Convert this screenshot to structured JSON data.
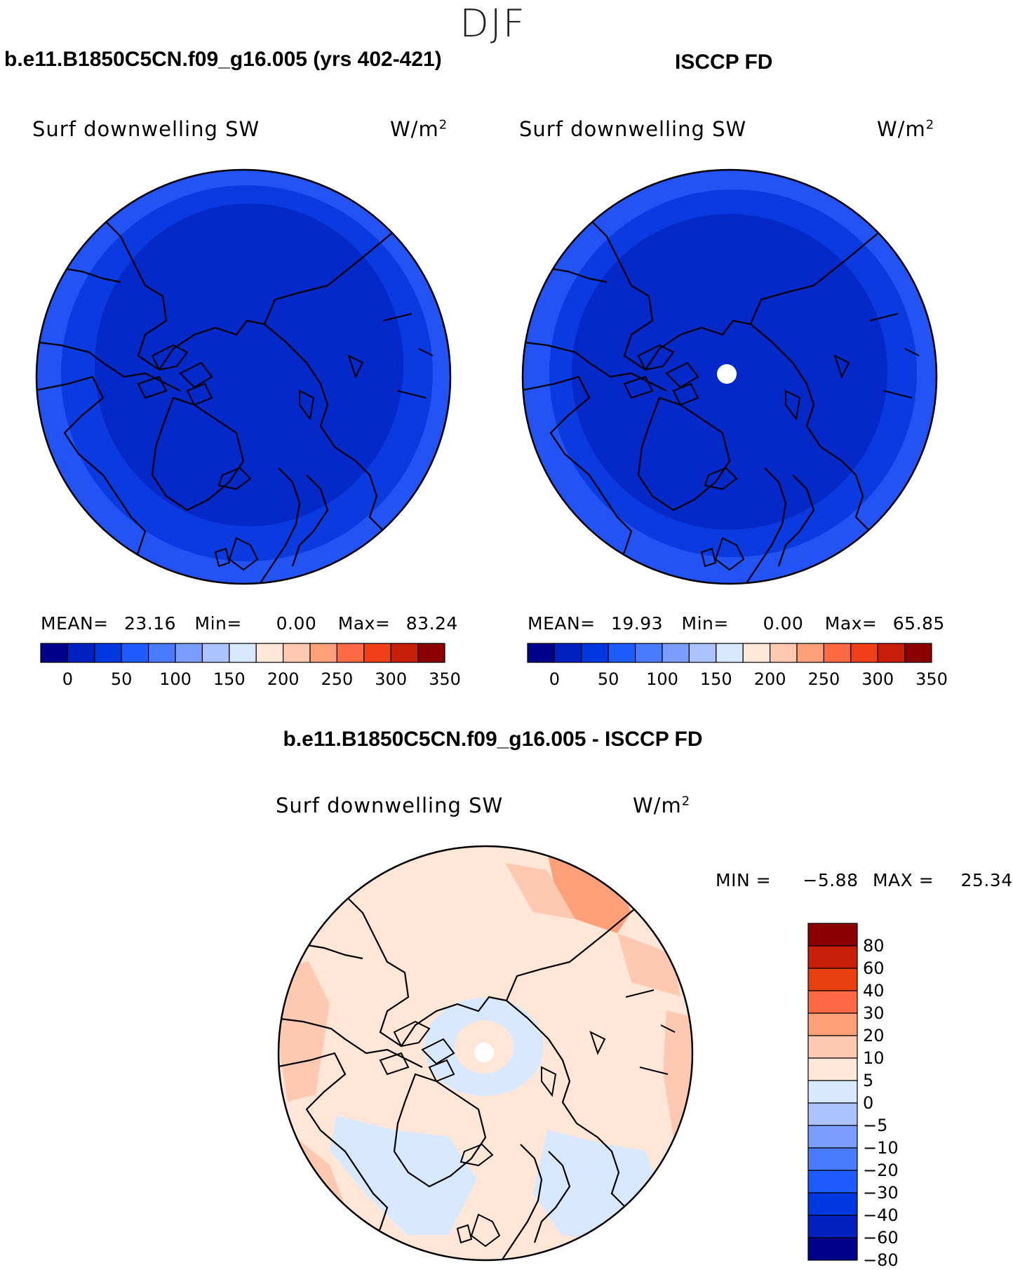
{
  "figure": {
    "title": "DJF",
    "left_title": "b.e11.B1850C5CN.f09_g16.005 (yrs 402-421)",
    "right_title": "ISCCP FD",
    "diff_title": "b.e11.B1850C5CN.f09_g16.005 - ISCCP FD"
  },
  "panels": {
    "model": {
      "variable": "Surf downwelling SW",
      "units": "W/m",
      "units_sup": "2",
      "mean_label": "MEAN=",
      "mean": "23.16",
      "min_label": "Min=",
      "min": "0.00",
      "max_label": "Max=",
      "max": "83.24"
    },
    "obs": {
      "variable": "Surf downwelling SW",
      "units": "W/m",
      "units_sup": "2",
      "mean_label": "MEAN=",
      "mean": "19.93",
      "min_label": "Min=",
      "min": "0.00",
      "max_label": "Max=",
      "max": "65.85"
    },
    "diff": {
      "variable": "Surf downwelling SW",
      "units": "W/m",
      "units_sup": "2",
      "min_label": "MIN =",
      "min": "−5.88",
      "max_label": "MAX =",
      "max": "25.34"
    }
  },
  "chart_data": [
    {
      "type": "heatmap",
      "name": "model",
      "projection": "north polar stereographic",
      "title": "Surf downwelling SW",
      "units": "W/m2",
      "colorbar": {
        "levels": [
          0,
          25,
          50,
          75,
          100,
          125,
          150,
          175,
          200,
          225,
          250,
          275,
          300,
          325,
          350
        ],
        "tick_labels": [
          "0",
          "50",
          "100",
          "150",
          "200",
          "250",
          "300",
          "350"
        ],
        "colors": [
          "#00008b",
          "#0020c0",
          "#0038e0",
          "#1f5cff",
          "#4a7bff",
          "#7a9dff",
          "#adc3ff",
          "#d8e8ff",
          "#ffe8d8",
          "#ffc8b0",
          "#ffa07a",
          "#ff6a45",
          "#f0401a",
          "#c81e0a",
          "#8b0000"
        ]
      },
      "stats": {
        "mean": 23.16,
        "min": 0.0,
        "max": 83.24
      },
      "rings": [
        {
          "range": "0-25",
          "color": "#0020c0"
        },
        {
          "range": "25-50",
          "color": "#0038e0"
        },
        {
          "range": "50-75",
          "color": "#1f5cff"
        }
      ]
    },
    {
      "type": "heatmap",
      "name": "obs",
      "projection": "north polar stereographic",
      "title": "Surf downwelling SW",
      "units": "W/m2",
      "colorbar": {
        "levels": [
          0,
          25,
          50,
          75,
          100,
          125,
          150,
          175,
          200,
          225,
          250,
          275,
          300,
          325,
          350
        ],
        "tick_labels": [
          "0",
          "50",
          "100",
          "150",
          "200",
          "250",
          "300",
          "350"
        ],
        "colors": [
          "#00008b",
          "#0020c0",
          "#0038e0",
          "#1f5cff",
          "#4a7bff",
          "#7a9dff",
          "#adc3ff",
          "#d8e8ff",
          "#ffe8d8",
          "#ffc8b0",
          "#ffa07a",
          "#ff6a45",
          "#f0401a",
          "#c81e0a",
          "#8b0000"
        ]
      },
      "stats": {
        "mean": 19.93,
        "min": 0.0,
        "max": 65.85
      },
      "rings": [
        {
          "range": "0-25",
          "color": "#0020c0"
        },
        {
          "range": "25-50",
          "color": "#0038e0"
        },
        {
          "range": "50-75",
          "color": "#1f5cff"
        }
      ],
      "missing_pole": true
    },
    {
      "type": "heatmap",
      "name": "difference",
      "projection": "north polar stereographic",
      "title": "Surf downwelling SW",
      "units": "W/m2",
      "colorbar": {
        "tick_labels": [
          "80",
          "60",
          "40",
          "30",
          "20",
          "10",
          "5",
          "0",
          "−5",
          "−10",
          "−20",
          "−30",
          "−40",
          "−60",
          "−80"
        ],
        "colors": [
          "#8b0000",
          "#c81e0a",
          "#e8400f",
          "#ff6a45",
          "#ffa07a",
          "#ffc8b0",
          "#ffe8d8",
          "#d8e8ff",
          "#adc3ff",
          "#7a9dff",
          "#4a7bff",
          "#1f5cff",
          "#0038e0",
          "#0020c0",
          "#00008b"
        ]
      },
      "stats": {
        "min": -5.88,
        "max": 25.34
      },
      "missing_pole": true
    }
  ]
}
